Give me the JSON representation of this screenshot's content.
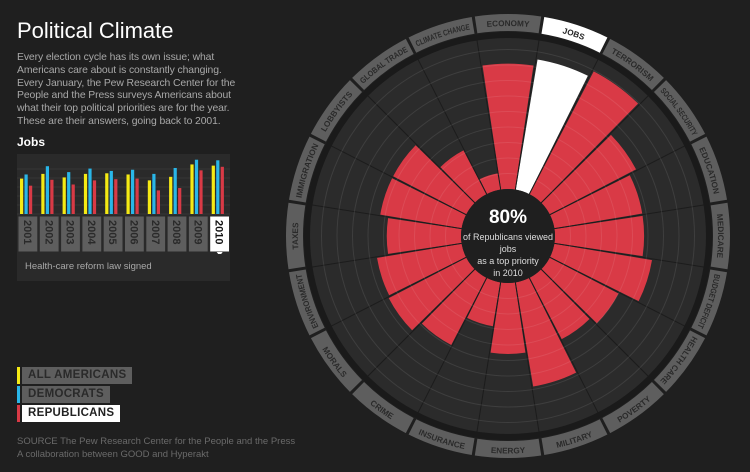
{
  "header": {
    "title": "Political Climate",
    "intro": "Every election cycle has its own issue; what Americans care about is constantly changing. Every January, the Pew Research Center for the People and the Press surveys Americans about what their top political priorities are for the year. These are their answers, going back to 2001."
  },
  "mini_chart": {
    "title": "Jobs",
    "note": "Health-care reform law signed",
    "selected_year": "2010"
  },
  "legend": [
    {
      "label": "ALL AMERICANS",
      "color": "#f5ea14",
      "selected": false
    },
    {
      "label": "DEMOCRATS",
      "color": "#29b6e8",
      "selected": false
    },
    {
      "label": "REPUBLICANS",
      "color": "#d93a46",
      "selected": true
    }
  ],
  "center": {
    "percent": "80%",
    "line1": "of Republicans viewed",
    "line2": "jobs",
    "line3": "as a top priority",
    "line4": "in 2010"
  },
  "source": {
    "line1": "SOURCE The Pew Research Center for the People and the Press",
    "line2": "A collaboration between GOOD and Hyperakt"
  },
  "chart_data": [
    {
      "type": "bar",
      "title": "Jobs",
      "categories": [
        "2001",
        "2002",
        "2003",
        "2004",
        "2005",
        "2006",
        "2007",
        "2008",
        "2009",
        "2010"
      ],
      "ylim": [
        0,
        100
      ],
      "series": [
        {
          "name": "ALL AMERICANS",
          "color": "#f5ea14",
          "values": [
            60,
            68,
            62,
            68,
            69,
            67,
            57,
            63,
            84,
            82
          ]
        },
        {
          "name": "DEMOCRATS",
          "color": "#29b6e8",
          "values": [
            67,
            81,
            71,
            77,
            73,
            75,
            68,
            78,
            92,
            91
          ]
        },
        {
          "name": "REPUBLICANS",
          "color": "#d93a46",
          "values": [
            48,
            58,
            50,
            57,
            59,
            60,
            40,
            44,
            74,
            80
          ]
        }
      ]
    },
    {
      "type": "radial-bar",
      "series_name": "REPUBLICANS",
      "year": "2010",
      "color": "#d93a46",
      "highlight_color": "#ffffff",
      "selected": "JOBS",
      "rlim": [
        0,
        100
      ],
      "categories": [
        "ECONOMY",
        "JOBS",
        "TERRORISM",
        "SOCIAL SECURITY",
        "EDUCATION",
        "MEDICARE",
        "BUDGET DEFICIT",
        "HEALTH CARE",
        "POVERTY",
        "MILITARY",
        "ENERGY",
        "INSURANCE",
        "CRIME",
        "MORALS",
        "ENVIRONMENT",
        "TAXES",
        "IMMIGRATION",
        "LOBBYISTS",
        "GLOBAL TRADE",
        "CLIMATE CHANGE"
      ],
      "values": [
        76,
        80,
        84,
        59,
        54,
        54,
        60,
        47,
        42,
        64,
        43,
        27,
        46,
        53,
        52,
        45,
        50,
        50,
        30,
        10
      ]
    }
  ]
}
